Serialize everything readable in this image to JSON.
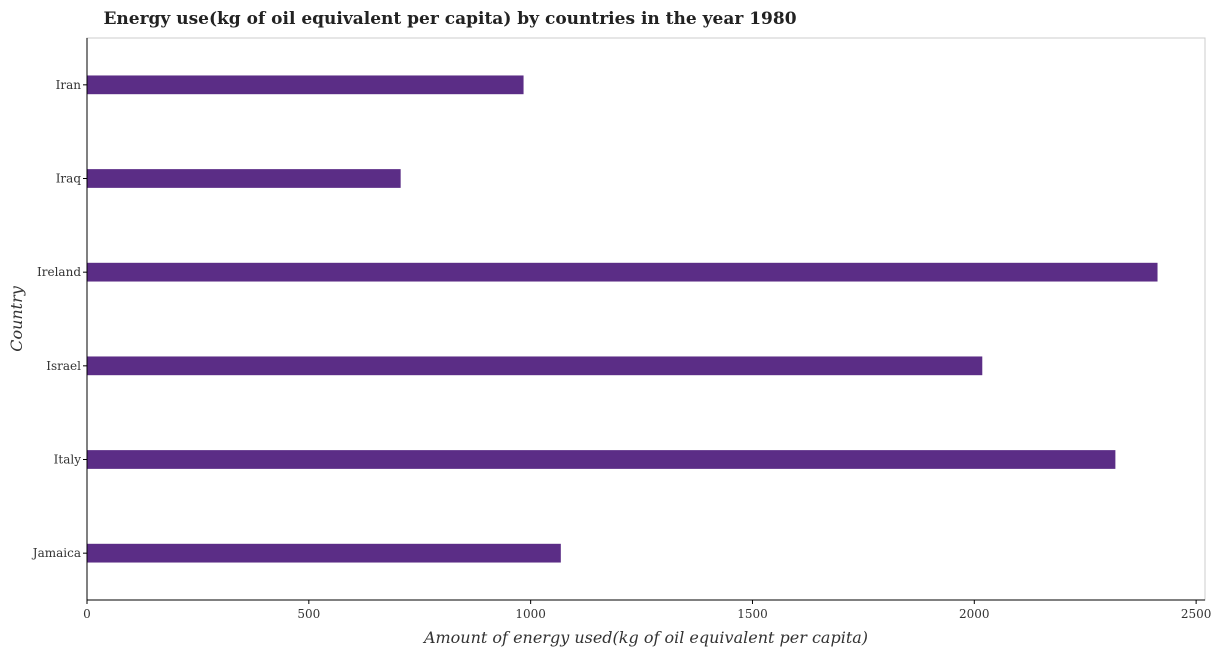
{
  "chart_data": {
    "type": "bar",
    "orientation": "horizontal",
    "title": "Energy use(kg of oil equivalent per capita) by countries in the year 1980",
    "xlabel": "Amount of energy used(kg of oil equivalent per capita)",
    "ylabel": "Country",
    "categories": [
      "Iran",
      "Iraq",
      "Ireland",
      "Israel",
      "Italy",
      "Jamaica"
    ],
    "values": [
      984,
      707,
      2413,
      2018,
      2318,
      1068
    ],
    "xlim": [
      0,
      2520
    ],
    "xticks": [
      0,
      500,
      1000,
      1500,
      2000,
      2500
    ],
    "grid": false,
    "legend": "none",
    "colors": {
      "bar": "#5b2d86",
      "axis": "#000000"
    }
  }
}
